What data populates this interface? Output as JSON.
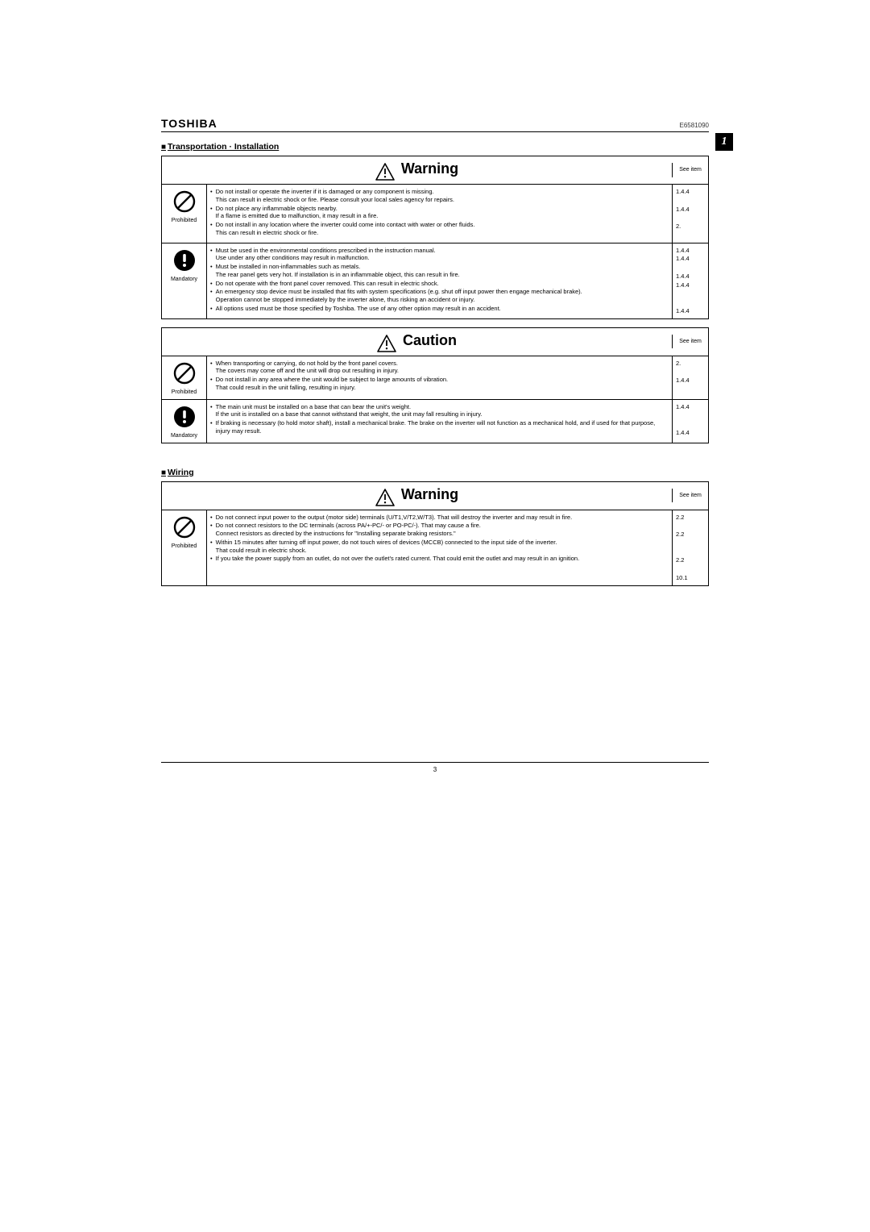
{
  "brand": "TOSHIBA",
  "doc_number": "E6581090",
  "side_badge": "1",
  "page_number": "3",
  "see_item_label": "See item",
  "sections": [
    {
      "title": "Transportation · Installation",
      "boxes": [
        {
          "heading": "Warning",
          "rows": [
            {
              "icon": "prohibited",
              "icon_label": "Prohibited",
              "items": [
                {
                  "text": "Do not install or operate the inverter if it is damaged or any component is missing.\nThis can result in electric shock or fire. Please consult your local sales agency for repairs.",
                  "ref": "1.4.4"
                },
                {
                  "text": "Do not place any inflammable objects nearby.\nIf a flame is emitted due to malfunction, it may result in a fire.",
                  "ref": "1.4.4"
                },
                {
                  "text": "Do not install in any location where the inverter could come into contact with water or other fluids.\nThis can result in electric shock or fire.",
                  "ref": "2."
                }
              ]
            },
            {
              "icon": "mandatory",
              "icon_label": "Mandatory",
              "items": [
                {
                  "text": "Must be used in the environmental conditions prescribed in the instruction manual.\nUse under any other conditions may result in malfunction.",
                  "ref": "1.4.4"
                },
                {
                  "text": "Must be installed in non-inflammables such as metals.\nThe rear panel gets very hot. If installation is in an inflammable object, this can result in fire.",
                  "ref": "1.4.4"
                },
                {
                  "text": "Do not operate with the front panel cover removed. This can result in electric shock.",
                  "ref": "1.4.4"
                },
                {
                  "text": "An emergency stop device must be installed that fits with system specifications (e.g. shut off input power then engage mechanical brake).\nOperation cannot be stopped immediately by the inverter alone, thus risking an accident or injury.",
                  "ref": "1.4.4"
                },
                {
                  "text": "All options used must be those specified by Toshiba. The use of any other option may result in an accident.",
                  "ref": "1.4.4"
                }
              ],
              "ref_layout": [
                "1.4.4",
                "1.4.4",
                "",
                "1.4.4",
                "1.4.4",
                "",
                "",
                "1.4.4"
              ]
            }
          ]
        },
        {
          "heading": "Caution",
          "rows": [
            {
              "icon": "prohibited",
              "icon_label": "Prohibited",
              "items": [
                {
                  "text": "When transporting or carrying, do not hold by the front panel covers.\nThe covers may come off and the unit will drop out resulting in injury.",
                  "ref": "2."
                },
                {
                  "text": "Do not install in any area where the unit would be subject to large amounts of vibration.\nThat could result in the unit falling, resulting in injury.",
                  "ref": "1.4.4"
                }
              ]
            },
            {
              "icon": "mandatory",
              "icon_label": "Mandatory",
              "items": [
                {
                  "text": "The main unit must be installed on a base that can bear the unit's weight.\nIf the unit is installed on a base that cannot withstand that weight, the unit may fall resulting in injury.",
                  "ref": "1.4.4"
                },
                {
                  "text": "If braking is necessary (to hold motor shaft), install a mechanical brake. The brake on the inverter will not function as a mechanical hold, and if used for that purpose, injury may result.",
                  "ref": "1.4.4"
                }
              ],
              "ref_layout": [
                "1.4.4",
                "",
                "",
                "1.4.4"
              ]
            }
          ]
        }
      ]
    },
    {
      "title": "Wiring",
      "boxes": [
        {
          "heading": "Warning",
          "rows": [
            {
              "icon": "prohibited",
              "icon_label": "Prohibited",
              "items": [
                {
                  "text": "Do not connect input power to the output (motor side) terminals (U/T1,V/T2,W/T3). That will destroy the inverter and may result in fire.",
                  "ref": "2.2"
                },
                {
                  "text": "Do not connect resistors to the DC terminals (across PA/+-PC/- or PO-PC/-). That may cause a fire.\nConnect resistors as directed by the instructions for \"Installing separate braking resistors.\"",
                  "ref": "2.2"
                },
                {
                  "text": "Within 15 minutes after turning off input power, do not touch wires of devices (MCCB) connected to the input side of the inverter.\nThat could result in electric shock.",
                  "ref": "2.2"
                },
                {
                  "text": "If you take the power supply from an outlet, do not over the outlet's rated current. That could emit the outlet and may result in an ignition.",
                  "ref": "10.1"
                }
              ],
              "ref_layout": [
                "2.2",
                "",
                "2.2",
                "",
                "",
                "2.2",
                "",
                "10.1"
              ]
            }
          ]
        }
      ]
    }
  ]
}
